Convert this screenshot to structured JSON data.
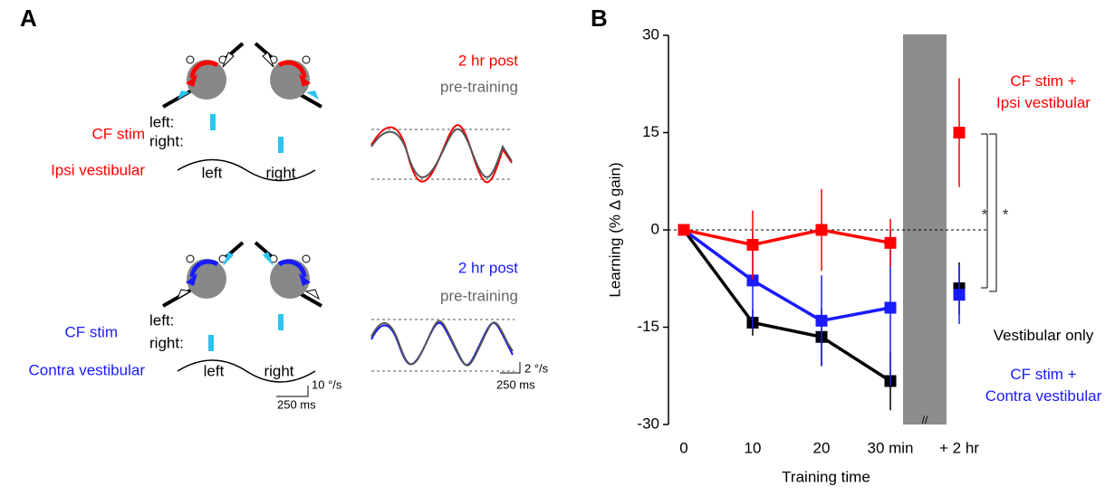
{
  "panel_labels": [
    "A",
    "B"
  ],
  "panel_a": {
    "top": {
      "condition": "CF stim",
      "vestibular": "Ipsi vestibular",
      "left_row": "left:",
      "right_row": "right:",
      "left": "left",
      "right": "right",
      "post": "2 hr post",
      "pre": "pre-training"
    },
    "bottom": {
      "condition": "CF stim",
      "vestibular": "Contra vestibular",
      "left_row": "left:",
      "right_row": "right:",
      "left": "left",
      "right": "right",
      "post": "2 hr post",
      "pre": "pre-training",
      "scale_velocity": "10 °/s",
      "scale_time": "250 ms",
      "trace_scale_velocity": "2 °/s",
      "trace_scale_time": "250 ms"
    }
  },
  "chart_data": {
    "type": "line",
    "x_label": "Training time",
    "y_label": "Learning (% Δ gain)",
    "categories": [
      "0",
      "10",
      "20",
      "30 min",
      "+ 2 hr"
    ],
    "axis_break_after": 3,
    "axis_break_label": "//",
    "ylim": [
      -30,
      30
    ],
    "yticks": [
      -30,
      -15,
      0,
      15,
      30
    ],
    "reference_line": 0,
    "series": [
      {
        "name": "Vestibular only",
        "color": "#000000",
        "values": [
          0,
          -14.3,
          -16.5,
          -23.3,
          -9
        ],
        "errors": [
          0,
          2,
          4.5,
          4.5,
          4
        ]
      },
      {
        "name": "CF stim +\nContra vestibular",
        "color": "#1a1aff",
        "values": [
          0,
          -7.8,
          -14,
          -12,
          -10
        ],
        "errors": [
          0,
          7.5,
          7,
          12,
          4.5
        ]
      },
      {
        "name": "CF stim +\nIpsi vestibular",
        "color": "#ff0000",
        "values": [
          0,
          -2.3,
          0,
          -2,
          15
        ],
        "errors": [
          0,
          5.3,
          6.3,
          3.7,
          8.4
        ]
      }
    ],
    "annotations": [
      "*",
      "*"
    ]
  }
}
